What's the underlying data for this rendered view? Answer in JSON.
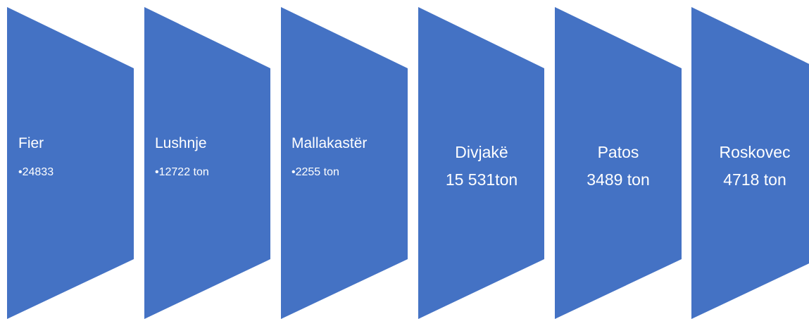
{
  "nodes": [
    {
      "label": "Fier",
      "value": "24833"
    },
    {
      "label": "Lushnje",
      "value": "12722 ton"
    },
    {
      "label": "Mallakastër",
      "value": "2255 ton"
    },
    {
      "label": "Divjakë",
      "value": "15 531ton"
    },
    {
      "label": "Patos",
      "value": "3489 ton"
    },
    {
      "label": "Roskovec",
      "value": "4718 ton"
    }
  ]
}
